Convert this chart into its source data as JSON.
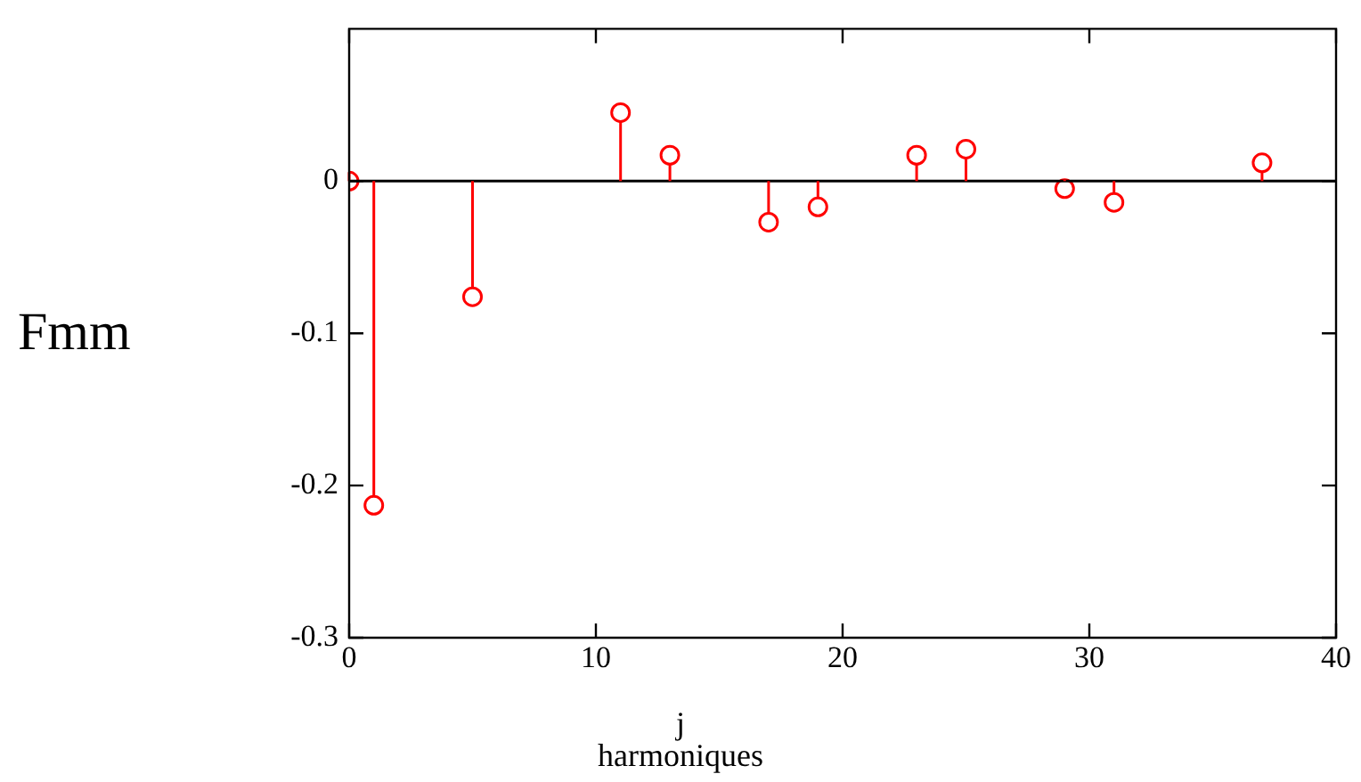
{
  "chart_data": {
    "type": "lollipop",
    "xlabel": "j",
    "ylabel": "Fmm",
    "annotations": [
      "harmoniques"
    ],
    "x": [
      0,
      1,
      5,
      11,
      13,
      17,
      19,
      23,
      25,
      29,
      31,
      37
    ],
    "series": [
      {
        "color": "#ff0000",
        "values": [
          0,
          -0.213,
          -0.076,
          0.045,
          0.017,
          -0.027,
          -0.017,
          0.017,
          0.021,
          -0.005,
          -0.014,
          0.012
        ]
      }
    ],
    "xlim": [
      0,
      40
    ],
    "xticks": [
      0,
      10,
      20,
      30,
      40
    ],
    "ylim": [
      -0.3,
      0.1
    ],
    "yticks": [
      -0.3,
      -0.2,
      -0.1,
      0
    ],
    "ref_lines": [
      {
        "axis": "y",
        "value": 0,
        "color": "#000000"
      }
    ],
    "marker": "circle",
    "grid": false,
    "legend": false
  }
}
